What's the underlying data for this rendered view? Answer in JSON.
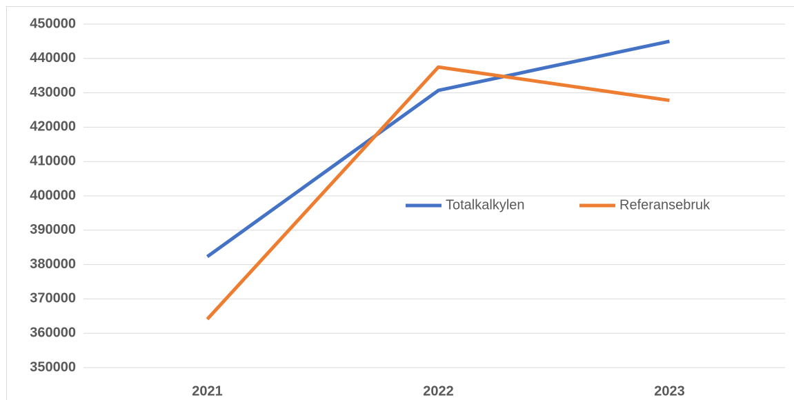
{
  "chart_data": {
    "type": "line",
    "categories": [
      "2021",
      "2022",
      "2023"
    ],
    "series": [
      {
        "name": "Totalkalkylen",
        "color": "#4472c4",
        "values": [
          382300,
          430700,
          445000
        ]
      },
      {
        "name": "Referansebruk",
        "color": "#ed7d31",
        "values": [
          364100,
          437500,
          427800
        ]
      }
    ],
    "ylim": [
      350000,
      450000
    ],
    "yticks": [
      350000,
      360000,
      370000,
      380000,
      390000,
      400000,
      410000,
      420000,
      430000,
      440000,
      450000
    ],
    "grid": true,
    "legend": "center"
  }
}
